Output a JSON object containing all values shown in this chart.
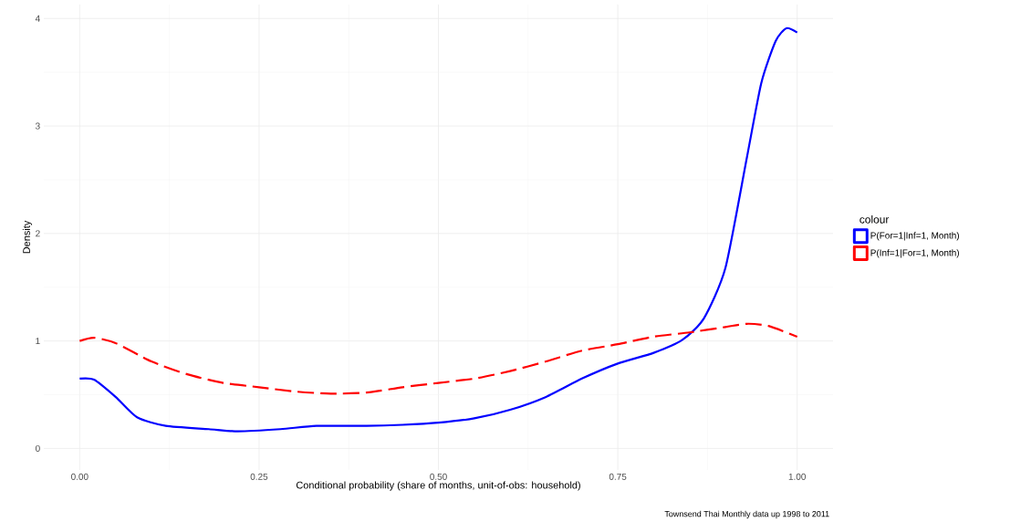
{
  "chart_data": {
    "type": "line",
    "xlabel": "Conditional probability (share of months, unit-of-obs: household)",
    "ylabel": "Density",
    "legend_title": "colour",
    "annotations": [
      "Townsend Thai Monthly data up 1998 to 2011"
    ],
    "xlim": [
      -0.05,
      1.05
    ],
    "ylim": [
      -0.2,
      4.13
    ],
    "xticks": [
      {
        "value": 0,
        "label": "0.00"
      },
      {
        "value": 0.25,
        "label": "0.25"
      },
      {
        "value": 0.5,
        "label": "0.50"
      },
      {
        "value": 0.75,
        "label": "0.75"
      },
      {
        "value": 1,
        "label": "1.00"
      }
    ],
    "yticks": [
      0,
      1,
      2,
      3,
      4
    ],
    "grid": true,
    "legend": "right",
    "series": [
      {
        "name": "P(For=1|Inf=1, Month)",
        "color": "#0000ff",
        "line_style": "solid",
        "x": [
          0,
          0.02,
          0.05,
          0.08,
          0.12,
          0.18,
          0.22,
          0.28,
          0.33,
          0.4,
          0.45,
          0.5,
          0.55,
          0.6,
          0.65,
          0.7,
          0.75,
          0.8,
          0.84,
          0.87,
          0.9,
          0.93,
          0.95,
          0.97,
          0.985,
          1.0
        ],
        "values": [
          0.65,
          0.64,
          0.48,
          0.29,
          0.21,
          0.18,
          0.16,
          0.18,
          0.21,
          0.21,
          0.22,
          0.24,
          0.28,
          0.36,
          0.48,
          0.65,
          0.79,
          0.89,
          1.01,
          1.21,
          1.68,
          2.71,
          3.4,
          3.79,
          3.91,
          3.87
        ]
      },
      {
        "name": "P(Inf=1|For=1, Month)",
        "color": "#ff0000",
        "line_style": "dashed",
        "x": [
          0,
          0.02,
          0.05,
          0.1,
          0.15,
          0.2,
          0.25,
          0.3,
          0.35,
          0.4,
          0.45,
          0.5,
          0.55,
          0.6,
          0.65,
          0.7,
          0.75,
          0.8,
          0.85,
          0.9,
          0.93,
          0.96,
          1.0
        ],
        "values": [
          1.0,
          1.03,
          0.98,
          0.81,
          0.69,
          0.61,
          0.57,
          0.53,
          0.51,
          0.52,
          0.57,
          0.61,
          0.65,
          0.72,
          0.81,
          0.91,
          0.97,
          1.04,
          1.08,
          1.13,
          1.16,
          1.14,
          1.04
        ]
      }
    ]
  }
}
